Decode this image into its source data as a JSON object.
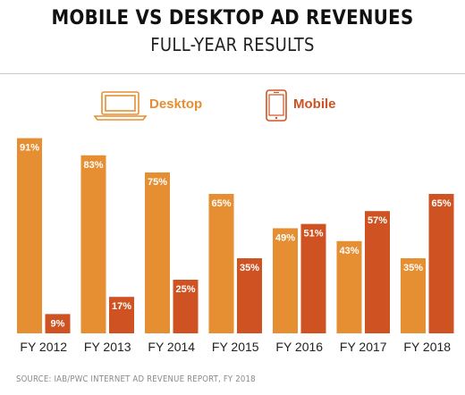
{
  "header": {
    "title": "MOBILE VS DESKTOP AD REVENUES",
    "subtitle": "FULL-YEAR RESULTS"
  },
  "source": "SOURCE: IAB/PWC INTERNET AD REVENUE REPORT, FY 2018",
  "colors": {
    "desktop": "#e58f32",
    "mobile": "#cf5322",
    "label": "#ffffff"
  },
  "legend": [
    {
      "name": "Desktop",
      "icon": "laptop-icon",
      "color": "#e58f32"
    },
    {
      "name": "Mobile",
      "icon": "smartphone-icon",
      "color": "#cf5322"
    }
  ],
  "chart_data": {
    "type": "bar",
    "title": "MOBILE VS DESKTOP AD REVENUES",
    "subtitle": "FULL-YEAR RESULTS",
    "categories": [
      "FY 2012",
      "FY 2013",
      "FY 2014",
      "FY 2015",
      "FY 2016",
      "FY 2017",
      "FY 2018"
    ],
    "series": [
      {
        "name": "Desktop",
        "values": [
          91,
          83,
          75,
          65,
          49,
          43,
          35
        ],
        "labels": [
          "91%",
          "83%",
          "75%",
          "65%",
          "49%",
          "43%",
          "35%"
        ]
      },
      {
        "name": "Mobile",
        "values": [
          9,
          17,
          25,
          35,
          51,
          57,
          65
        ],
        "labels": [
          "9%",
          "17%",
          "25%",
          "35%",
          "51%",
          "57%",
          "65%"
        ]
      }
    ],
    "ylim": [
      0,
      100
    ],
    "grid": false,
    "legend_position": "top"
  }
}
